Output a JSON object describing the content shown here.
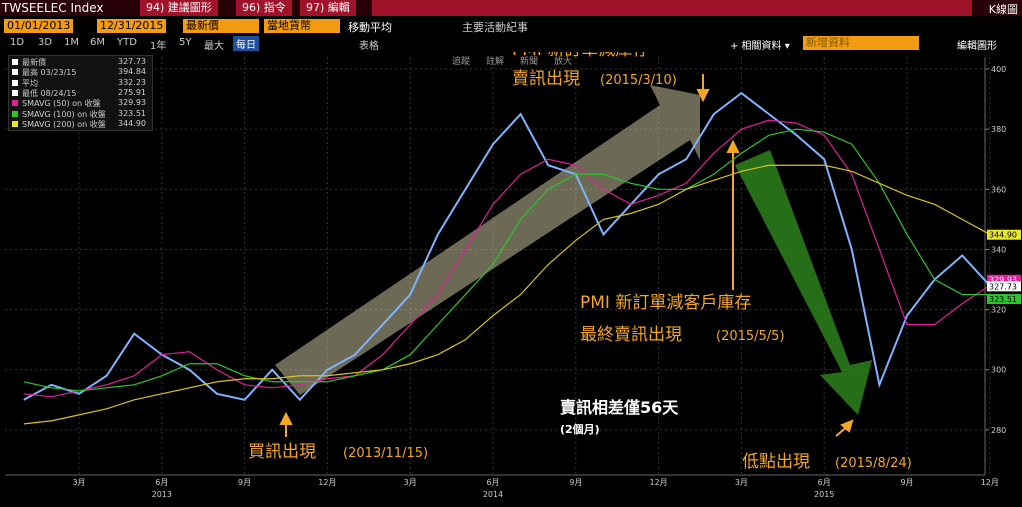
{
  "ui": {
    "ticker": "TWSEELEC Index",
    "menus": [
      "94) 建議圖形",
      "96) 指令",
      "97) 編輯"
    ],
    "chart_kind": "K線圖",
    "start_date": "01/01/2013",
    "end_date": "12/31/2015",
    "price_field": "最新價",
    "currency": "當地貨幣",
    "moving_avg": "移動平均",
    "events": "主要活動紀事",
    "periods": [
      "1D",
      "3D",
      "1M",
      "6M",
      "YTD",
      "1年",
      "5Y",
      "最大"
    ],
    "frequency": "每日",
    "table": "表格",
    "related": "+ 相關資料 ▾",
    "add_data": "新增資料",
    "edit_chart": "編輯圖形",
    "tools": [
      "追蹤",
      "註解",
      "新聞",
      "放大"
    ],
    "legend": [
      {
        "label": "最新價",
        "value": "327.73",
        "color": "#ffffff"
      },
      {
        "label": "最高 03/23/15",
        "value": "394.84",
        "color": "#ffffff"
      },
      {
        "label": "平均",
        "value": "332.23",
        "color": "#ffffff"
      },
      {
        "label": "最低 08/24/15",
        "value": "275.91",
        "color": "#ffffff"
      },
      {
        "label": "SMAVG (50)  on 收盤",
        "value": "329.93",
        "color": "#e0209a"
      },
      {
        "label": "SMAVG (100) on 收盤",
        "value": "323.51",
        "color": "#2ec42e"
      },
      {
        "label": "SMAVG (200) on 收盤",
        "value": "344.90",
        "color": "#e8e82a"
      }
    ]
  },
  "chart_data": {
    "type": "line",
    "x": [
      "2013-01",
      "2013-02",
      "2013-03",
      "2013-04",
      "2013-05",
      "2013-06",
      "2013-07",
      "2013-08",
      "2013-09",
      "2013-10",
      "2013-11",
      "2013-12",
      "2014-01",
      "2014-02",
      "2014-03",
      "2014-04",
      "2014-05",
      "2014-06",
      "2014-07",
      "2014-08",
      "2014-09",
      "2014-10",
      "2014-11",
      "2014-12",
      "2015-01",
      "2015-02",
      "2015-03",
      "2015-04",
      "2015-05",
      "2015-06",
      "2015-07",
      "2015-08",
      "2015-09",
      "2015-10",
      "2015-11",
      "2015-12"
    ],
    "series": [
      {
        "name": "TWSEELEC Index",
        "color": "#7fb2ff",
        "values": [
          290,
          295,
          292,
          298,
          312,
          305,
          300,
          292,
          290,
          300,
          290,
          300,
          305,
          315,
          325,
          345,
          360,
          375,
          385,
          368,
          365,
          345,
          355,
          365,
          370,
          385,
          392,
          385,
          378,
          370,
          340,
          295,
          318,
          330,
          338,
          328
        ]
      },
      {
        "name": "SMAVG (50)",
        "color": "#e0209a",
        "values": [
          292,
          291,
          293,
          295,
          298,
          305,
          306,
          300,
          295,
          294,
          295,
          297,
          298,
          305,
          315,
          325,
          340,
          355,
          365,
          370,
          368,
          360,
          355,
          358,
          362,
          372,
          380,
          383,
          382,
          378,
          365,
          340,
          315,
          315,
          322,
          328
        ]
      },
      {
        "name": "SMAVG (100)",
        "color": "#2ec42e",
        "values": [
          296,
          294,
          293,
          294,
          295,
          298,
          302,
          302,
          298,
          296,
          296,
          296,
          298,
          300,
          305,
          315,
          325,
          335,
          350,
          360,
          365,
          365,
          362,
          360,
          360,
          365,
          372,
          378,
          380,
          379,
          375,
          362,
          345,
          330,
          325,
          325
        ]
      },
      {
        "name": "SMAVG (200)",
        "color": "#d9c21a",
        "values": [
          282,
          283,
          285,
          287,
          290,
          292,
          294,
          296,
          297,
          297,
          298,
          298,
          299,
          300,
          302,
          305,
          310,
          318,
          325,
          335,
          343,
          350,
          352,
          355,
          360,
          363,
          366,
          368,
          368,
          368,
          366,
          362,
          358,
          355,
          350,
          345
        ]
      }
    ],
    "ylim": [
      265,
      404
    ],
    "yticks": [
      280,
      300,
      320,
      340,
      360,
      380,
      400
    ],
    "grid": true,
    "xticks": [
      {
        "value": "2013-03",
        "label": "3月"
      },
      {
        "value": "2013-06",
        "label": "6月"
      },
      {
        "value": "2013-09",
        "label": "9月"
      },
      {
        "value": "2013-12",
        "label": "12月"
      },
      {
        "value": "2014-03",
        "label": "3月"
      },
      {
        "value": "2014-06",
        "label": "6月"
      },
      {
        "value": "2014-09",
        "label": "9月"
      },
      {
        "value": "2014-12",
        "label": "12月"
      },
      {
        "value": "2015-03",
        "label": "3月"
      },
      {
        "value": "2015-06",
        "label": "6月"
      },
      {
        "value": "2015-09",
        "label": "9月"
      },
      {
        "value": "2015-12",
        "label": "12月"
      }
    ],
    "year_ticks": [
      {
        "value": "2013-06",
        "label": "2013"
      },
      {
        "value": "2014-06",
        "label": "2014"
      },
      {
        "value": "2015-06",
        "label": "2015"
      }
    ],
    "annotations": {
      "sell1_line1": "PMI 新訂單減庫存",
      "sell1_line2": "賣訊出現",
      "sell1_date": "(2015/3/10)",
      "sell2_line1": "PMI 新訂單減客戶庫存",
      "sell2_line2": "最終賣訊出現",
      "sell2_date": "(2015/5/5)",
      "buy": "買訊出現",
      "buy_date": "(2013/11/15)",
      "gap": "賣訊相差僅56天",
      "gap_sub": "(2個月)",
      "low": "低點出現",
      "low_date": "(2015/8/24)"
    }
  }
}
